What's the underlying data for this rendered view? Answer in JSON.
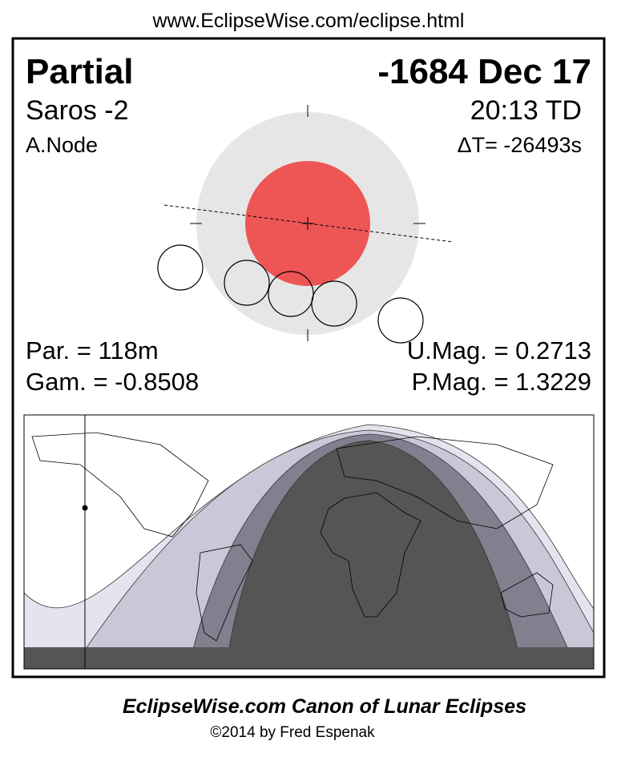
{
  "header": {
    "url": "www.EclipseWise.com/eclipse.html"
  },
  "panel": {
    "type": "Partial",
    "date": "-1684 Dec 17",
    "saros": "Saros  -2",
    "time": "20:13 TD",
    "node": "A.Node",
    "delta_t": "ΔT= -26493s",
    "duration": "Par. = 118m",
    "umbral_magnitude": "U.Mag. = 0.2713",
    "gamma": "Gam. = -0.8508",
    "penumbral_magnitude": "P.Mag. = 1.3229"
  },
  "footer": {
    "title": "EclipseWise.com Canon of Lunar Eclipses",
    "credit": "©2014 by Fred Espenak"
  }
}
